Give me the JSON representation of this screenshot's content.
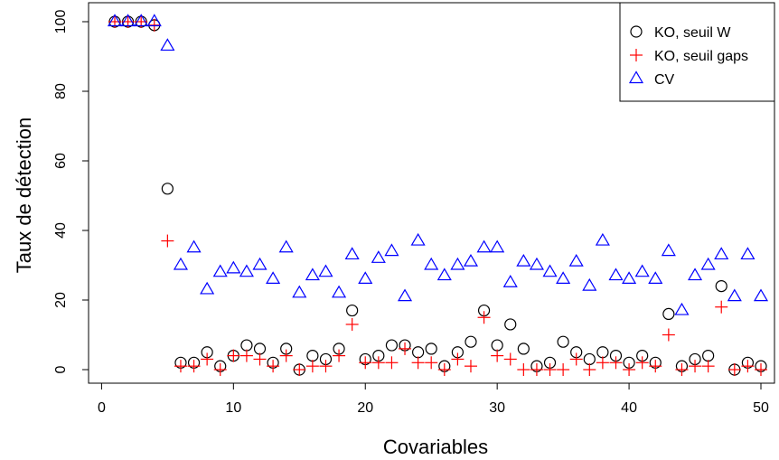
{
  "chart_data": {
    "type": "scatter",
    "xlabel": "Covariables",
    "ylabel": "Taux de détection",
    "xlim": [
      1,
      50
    ],
    "ylim": [
      0,
      100
    ],
    "x_ticks": [
      0,
      10,
      20,
      30,
      40,
      50
    ],
    "y_ticks": [
      0,
      20,
      40,
      60,
      80,
      100
    ],
    "legend_position": "top-right",
    "grid": false,
    "series": [
      {
        "name": "KO, seuil W",
        "marker": "circle",
        "color": "#000000",
        "x": [
          1,
          2,
          3,
          4,
          5,
          6,
          7,
          8,
          9,
          10,
          11,
          12,
          13,
          14,
          15,
          16,
          17,
          18,
          19,
          20,
          21,
          22,
          23,
          24,
          25,
          26,
          27,
          28,
          29,
          30,
          31,
          32,
          33,
          34,
          35,
          36,
          37,
          38,
          39,
          40,
          41,
          42,
          43,
          44,
          45,
          46,
          47,
          48,
          49,
          50
        ],
        "y": [
          100,
          100,
          100,
          99,
          52,
          2,
          2,
          5,
          1,
          4,
          7,
          6,
          2,
          6,
          0,
          4,
          3,
          6,
          17,
          3,
          4,
          7,
          7,
          5,
          6,
          1,
          5,
          8,
          17,
          7,
          13,
          6,
          1,
          2,
          8,
          5,
          3,
          5,
          4,
          2,
          4,
          2,
          16,
          1,
          3,
          4,
          24,
          0,
          2,
          1
        ]
      },
      {
        "name": "KO, seuil gaps",
        "marker": "plus",
        "color": "#ff0000",
        "x": [
          1,
          2,
          3,
          4,
          5,
          6,
          7,
          8,
          9,
          10,
          11,
          12,
          13,
          14,
          15,
          16,
          17,
          18,
          19,
          20,
          21,
          22,
          23,
          24,
          25,
          26,
          27,
          28,
          29,
          30,
          31,
          32,
          33,
          34,
          35,
          36,
          37,
          38,
          39,
          40,
          41,
          42,
          43,
          44,
          45,
          46,
          47,
          48,
          49,
          50
        ],
        "y": [
          100,
          100,
          100,
          99,
          37,
          1,
          1,
          3,
          0,
          4,
          4,
          3,
          1,
          4,
          0,
          1,
          1,
          4,
          13,
          2,
          2,
          2,
          6,
          2,
          2,
          0,
          3,
          1,
          15,
          4,
          3,
          0,
          0,
          0,
          0,
          3,
          0,
          2,
          2,
          0,
          2,
          1,
          10,
          0,
          1,
          1,
          18,
          0,
          1,
          0
        ]
      },
      {
        "name": "CV",
        "marker": "triangle",
        "color": "#0000ff",
        "x": [
          1,
          2,
          3,
          4,
          5,
          6,
          7,
          8,
          9,
          10,
          11,
          12,
          13,
          14,
          15,
          16,
          17,
          18,
          19,
          20,
          21,
          22,
          23,
          24,
          25,
          26,
          27,
          28,
          29,
          30,
          31,
          32,
          33,
          34,
          35,
          36,
          37,
          38,
          39,
          40,
          41,
          42,
          43,
          44,
          45,
          46,
          47,
          48,
          49,
          50
        ],
        "y": [
          100,
          100,
          100,
          100,
          93,
          30,
          35,
          23,
          28,
          29,
          28,
          30,
          26,
          35,
          22,
          27,
          28,
          22,
          33,
          26,
          32,
          34,
          21,
          37,
          30,
          27,
          30,
          31,
          35,
          35,
          25,
          31,
          30,
          28,
          26,
          31,
          24,
          37,
          27,
          26,
          28,
          26,
          34,
          17,
          27,
          30,
          33,
          21,
          33,
          21
        ]
      }
    ]
  }
}
